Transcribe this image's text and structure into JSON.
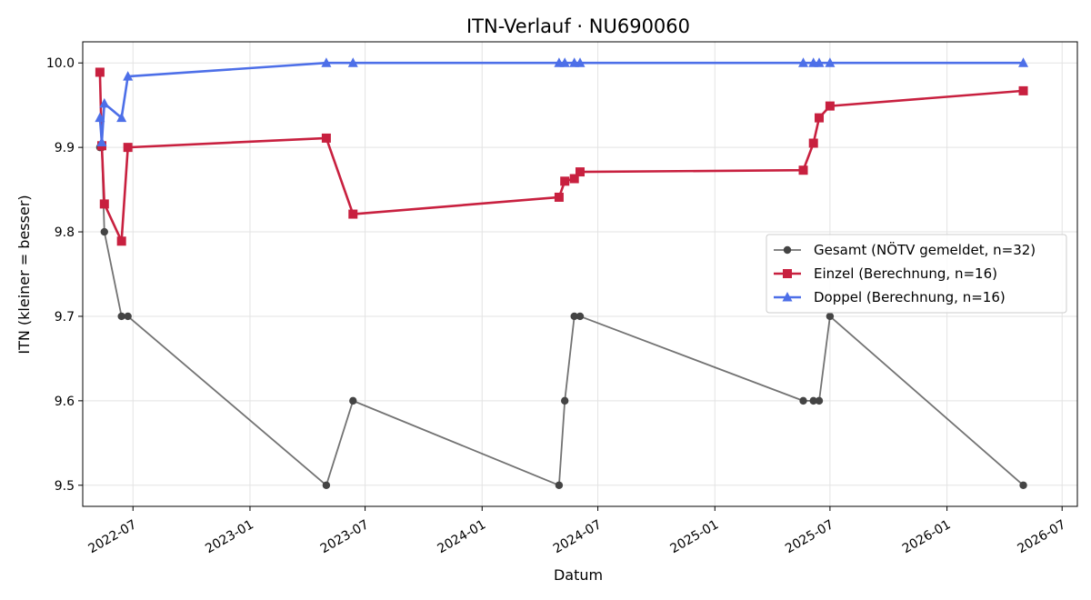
{
  "chart_data": {
    "type": "line",
    "title": "ITN-Verlauf · NU690060",
    "xlabel": "Datum",
    "ylabel": "ITN  (kleiner = besser)",
    "xlim": [
      "2022-04-13",
      "2026-07-25"
    ],
    "ylim": [
      9.475,
      10.025
    ],
    "x_ticks": [
      "2022-07",
      "2023-01",
      "2023-07",
      "2024-01",
      "2024-07",
      "2025-01",
      "2025-07",
      "2026-01",
      "2026-07"
    ],
    "y_ticks": [
      "9.5",
      "9.6",
      "9.7",
      "9.8",
      "9.9",
      "10.0"
    ],
    "grid": true,
    "legend_position": "center-right",
    "series": [
      {
        "name": "Gesamt (NÖTV gemeldet, n=32)",
        "color": "#444444",
        "marker": "circle",
        "points": [
          [
            "2022-05-10",
            9.9
          ],
          [
            "2022-05-13",
            9.9
          ],
          [
            "2022-05-17",
            9.8
          ],
          [
            "2022-06-13",
            9.7
          ],
          [
            "2022-06-23",
            9.7
          ],
          [
            "2023-05-01",
            9.5
          ],
          [
            "2023-06-12",
            9.6
          ],
          [
            "2024-05-01",
            9.5
          ],
          [
            "2024-05-10",
            9.6
          ],
          [
            "2024-05-25",
            9.7
          ],
          [
            "2024-06-03",
            9.7
          ],
          [
            "2025-05-20",
            9.6
          ],
          [
            "2025-06-05",
            9.6
          ],
          [
            "2025-06-14",
            9.6
          ],
          [
            "2025-07-01",
            9.7
          ],
          [
            "2026-05-01",
            9.5
          ]
        ]
      },
      {
        "name": "Einzel (Berechnung, n=16)",
        "color": "#c8203f",
        "marker": "square",
        "points": [
          [
            "2022-05-10",
            9.989
          ],
          [
            "2022-05-13",
            9.902
          ],
          [
            "2022-05-17",
            9.833
          ],
          [
            "2022-06-13",
            9.789
          ],
          [
            "2022-06-23",
            9.9
          ],
          [
            "2023-05-01",
            9.911
          ],
          [
            "2023-06-12",
            9.821
          ],
          [
            "2024-05-01",
            9.841
          ],
          [
            "2024-05-10",
            9.86
          ],
          [
            "2024-05-25",
            9.863
          ],
          [
            "2024-06-03",
            9.871
          ],
          [
            "2025-05-20",
            9.873
          ],
          [
            "2025-06-05",
            9.905
          ],
          [
            "2025-06-14",
            9.935
          ],
          [
            "2025-07-01",
            9.949
          ],
          [
            "2026-05-01",
            9.967
          ]
        ]
      },
      {
        "name": "Doppel (Berechnung, n=16)",
        "color": "#4d6fe8",
        "marker": "triangle",
        "points": [
          [
            "2022-05-10",
            9.935
          ],
          [
            "2022-05-13",
            9.906
          ],
          [
            "2022-05-17",
            9.952
          ],
          [
            "2022-06-13",
            9.935
          ],
          [
            "2022-06-23",
            9.984
          ],
          [
            "2023-05-01",
            10.0
          ],
          [
            "2023-06-12",
            10.0
          ],
          [
            "2024-05-01",
            10.0
          ],
          [
            "2024-05-10",
            10.0
          ],
          [
            "2024-05-25",
            10.0
          ],
          [
            "2024-06-03",
            10.0
          ],
          [
            "2025-05-20",
            10.0
          ],
          [
            "2025-06-05",
            10.0
          ],
          [
            "2025-06-14",
            10.0
          ],
          [
            "2025-07-01",
            10.0
          ],
          [
            "2026-05-01",
            10.0
          ]
        ]
      }
    ]
  }
}
